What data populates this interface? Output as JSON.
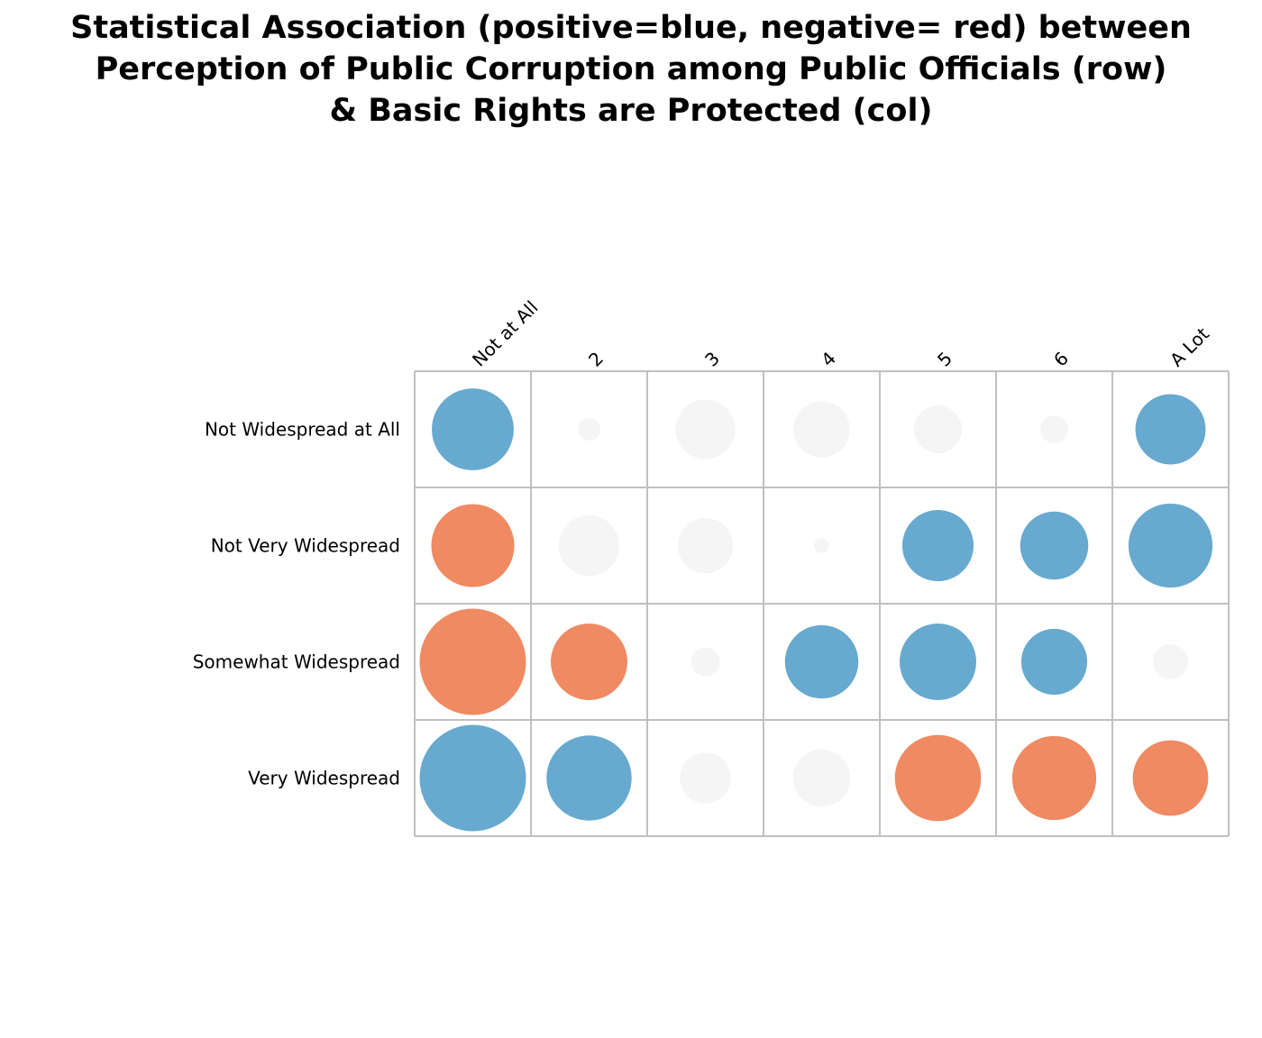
{
  "title_lines": [
    "Statistical Association (positive=blue, negative= red) between",
    "Perception of Public Corruption among Public Officials (row)",
    "& Basic Rights are Protected (col)"
  ],
  "colors": {
    "positive": "#67a9cf",
    "negative": "#ef8a62",
    "neutral": "#f5f5f5",
    "grid": "#c0c0c0"
  },
  "chart_data": {
    "type": "heatmap",
    "title": "Statistical Association (positive=blue, negative= red) between Perception of Public Corruption among Public Officials (row) & Basic Rights are Protected (col)",
    "encoding": "circle size = magnitude of association; color = sign (blue positive, red negative, grey near zero)",
    "rows": [
      "Not Widespread at All",
      "Not Very Widespread",
      "Somewhat Widespread",
      "Very Widespread"
    ],
    "columns": [
      "Not at All",
      "2",
      "3",
      "4",
      "5",
      "6",
      "A Lot"
    ],
    "values": [
      [
        0.77,
        0.21,
        0.56,
        0.53,
        0.45,
        0.26,
        0.66
      ],
      [
        0.78,
        0.57,
        0.52,
        0.14,
        0.67,
        0.64,
        0.79
      ],
      [
        1.0,
        0.72,
        0.27,
        0.69,
        0.72,
        0.62,
        0.33
      ],
      [
        1.0,
        0.8,
        0.48,
        0.54,
        0.81,
        0.79,
        0.71
      ]
    ],
    "signs": [
      [
        "positive",
        "neutral",
        "neutral",
        "neutral",
        "neutral",
        "neutral",
        "positive"
      ],
      [
        "negative",
        "neutral",
        "neutral",
        "neutral",
        "positive",
        "positive",
        "positive"
      ],
      [
        "negative",
        "negative",
        "neutral",
        "positive",
        "positive",
        "positive",
        "neutral"
      ],
      [
        "positive",
        "positive",
        "neutral",
        "neutral",
        "negative",
        "negative",
        "negative"
      ]
    ],
    "grid": true,
    "legend": "none"
  }
}
